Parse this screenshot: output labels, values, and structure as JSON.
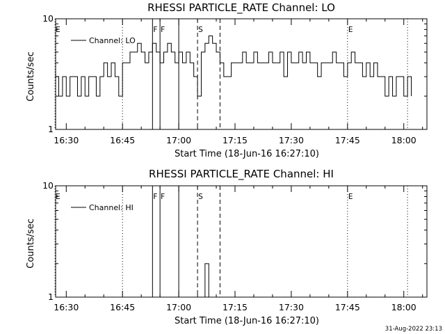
{
  "stamp": "31-Aug-2022 23:13",
  "chart_data": [
    {
      "type": "line",
      "title": "RHESSI PARTICLE_RATE Channel: LO",
      "xlabel": "Start Time (18-Jun-16 16:27:10)",
      "ylabel": "Counts/sec",
      "yscale": "log",
      "ylim": [
        1,
        10
      ],
      "y_tick_labels": [
        "1",
        "10"
      ],
      "x_tick_labels": [
        "16:30",
        "16:45",
        "17:00",
        "17:15",
        "17:30",
        "17:45",
        "18:00"
      ],
      "legend": "top-left",
      "series": [
        {
          "name": "Channel: LO",
          "x": [
            "16:27",
            "16:28",
            "16:29",
            "16:30",
            "16:31",
            "16:32",
            "16:33",
            "16:34",
            "16:35",
            "16:36",
            "16:37",
            "16:38",
            "16:39",
            "16:40",
            "16:41",
            "16:42",
            "16:43",
            "16:44",
            "16:45",
            "16:46",
            "16:47",
            "16:48",
            "16:49",
            "16:50",
            "16:51",
            "16:52",
            "16:53",
            "16:54",
            "16:55",
            "16:56",
            "16:57",
            "16:58",
            "16:59",
            "17:00",
            "17:01",
            "17:02",
            "17:03",
            "17:04",
            "17:05",
            "17:06",
            "17:07",
            "17:08",
            "17:09",
            "17:10",
            "17:11",
            "17:12",
            "17:13",
            "17:14",
            "17:15",
            "17:16",
            "17:17",
            "17:18",
            "17:19",
            "17:20",
            "17:21",
            "17:22",
            "17:23",
            "17:24",
            "17:25",
            "17:26",
            "17:27",
            "17:28",
            "17:29",
            "17:30",
            "17:31",
            "17:32",
            "17:33",
            "17:34",
            "17:35",
            "17:36",
            "17:37",
            "17:38",
            "17:39",
            "17:40",
            "17:41",
            "17:42",
            "17:43",
            "17:44",
            "17:45",
            "17:46",
            "17:47",
            "17:48",
            "17:49",
            "17:50",
            "17:51",
            "17:52",
            "17:53",
            "17:54",
            "17:55",
            "17:56",
            "17:57",
            "17:58",
            "17:59",
            "18:00",
            "18:01",
            "18:02"
          ],
          "values": [
            3,
            2,
            3,
            2,
            3,
            3,
            2,
            3,
            2,
            3,
            3,
            2,
            3,
            4,
            3,
            4,
            3,
            2,
            4,
            4,
            5,
            5,
            6,
            5,
            4,
            5,
            6,
            5,
            4,
            5,
            6,
            5,
            4,
            5,
            4,
            5,
            4,
            3,
            2,
            5,
            6,
            7,
            6,
            5,
            4,
            3,
            3,
            4,
            4,
            4,
            5,
            4,
            4,
            5,
            4,
            4,
            4,
            5,
            4,
            4,
            5,
            3,
            5,
            4,
            4,
            5,
            4,
            5,
            4,
            4,
            3,
            4,
            4,
            4,
            5,
            4,
            4,
            3,
            4,
            5,
            4,
            4,
            3,
            4,
            3,
            4,
            3,
            3,
            2,
            3,
            2,
            3,
            3,
            2,
            3,
            2
          ]
        }
      ],
      "markers": [
        {
          "label": "E",
          "time": "16:27",
          "style": "dotted"
        },
        {
          "label": "",
          "time": "16:45",
          "style": "dotted"
        },
        {
          "label": "F",
          "time": "16:53",
          "style": "solid"
        },
        {
          "label": "F",
          "time": "16:55",
          "style": "solid"
        },
        {
          "label": "",
          "time": "17:00",
          "style": "solid"
        },
        {
          "label": "S",
          "time": "17:05",
          "style": "dashed"
        },
        {
          "label": "",
          "time": "17:11",
          "style": "dashed"
        },
        {
          "label": "E",
          "time": "17:45",
          "style": "dotted"
        },
        {
          "label": "",
          "time": "18:01",
          "style": "dotted"
        }
      ]
    },
    {
      "type": "line",
      "title": "RHESSI PARTICLE_RATE Channel: HI",
      "xlabel": "Start Time (18-Jun-16 16:27:10)",
      "ylabel": "Counts/sec",
      "yscale": "log",
      "ylim": [
        1,
        10
      ],
      "y_tick_labels": [
        "1",
        "10"
      ],
      "x_tick_labels": [
        "16:30",
        "16:45",
        "17:00",
        "17:15",
        "17:30",
        "17:45",
        "18:00"
      ],
      "legend": "top-left",
      "series": [
        {
          "name": "Channel: HI",
          "x": [
            "17:06",
            "17:07",
            "17:08",
            "17:08"
          ],
          "values": [
            1,
            2,
            2,
            1
          ]
        }
      ],
      "markers": [
        {
          "label": "E",
          "time": "16:27",
          "style": "dotted"
        },
        {
          "label": "",
          "time": "16:45",
          "style": "dotted"
        },
        {
          "label": "F",
          "time": "16:53",
          "style": "solid"
        },
        {
          "label": "F",
          "time": "16:55",
          "style": "solid"
        },
        {
          "label": "",
          "time": "17:00",
          "style": "solid"
        },
        {
          "label": "S",
          "time": "17:05",
          "style": "dashed"
        },
        {
          "label": "",
          "time": "17:11",
          "style": "dashed"
        },
        {
          "label": "E",
          "time": "17:45",
          "style": "dotted"
        },
        {
          "label": "",
          "time": "18:01",
          "style": "dotted"
        }
      ]
    }
  ]
}
